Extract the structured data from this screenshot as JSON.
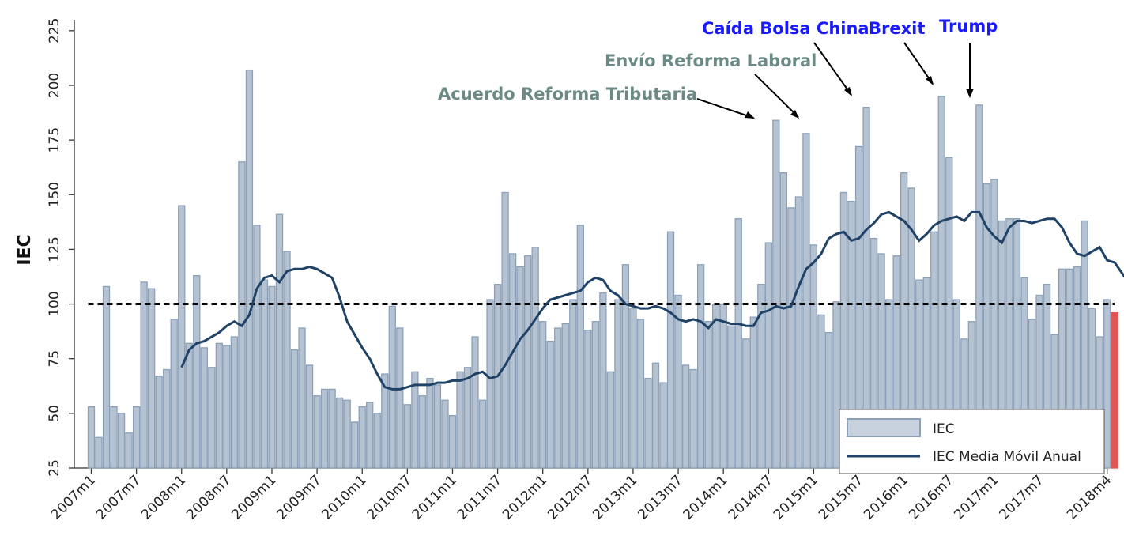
{
  "chart_data": {
    "type": "bar",
    "title": "",
    "xlabel": "",
    "ylabel": "IEC",
    "ylim": [
      25,
      230
    ],
    "yticks": [
      25,
      50,
      75,
      100,
      125,
      150,
      175,
      200,
      225
    ],
    "reference_line": 100,
    "start_month": "2007m1",
    "x_tick_labels": [
      "2007m1",
      "2007m7",
      "2008m1",
      "2008m7",
      "2009m1",
      "2009m7",
      "2010m1",
      "2010m7",
      "2011m1",
      "2011m7",
      "2012m1",
      "2012m7",
      "2013m1",
      "2013m7",
      "2014m1",
      "2014m7",
      "2015m1",
      "2015m7",
      "2016m1",
      "2016m7",
      "2017m1",
      "2017m7",
      "2018m4"
    ],
    "series": [
      {
        "name": "IEC",
        "values": [
          53,
          39,
          108,
          53,
          50,
          41,
          53,
          110,
          107,
          67,
          70,
          93,
          145,
          82,
          113,
          80,
          71,
          82,
          81,
          85,
          165,
          207,
          136,
          111,
          108,
          141,
          124,
          79,
          89,
          72,
          58,
          61,
          61,
          57,
          56,
          46,
          53,
          55,
          50,
          68,
          99,
          89,
          54,
          69,
          58,
          66,
          63,
          56,
          49,
          69,
          71,
          85,
          56,
          102,
          109,
          151,
          123,
          117,
          122,
          126,
          92,
          83,
          89,
          91,
          102,
          136,
          88,
          92,
          105,
          69,
          102,
          118,
          98,
          93,
          66,
          73,
          64,
          133,
          104,
          72,
          70,
          118,
          92,
          100,
          100,
          90,
          139,
          84,
          94,
          109,
          128,
          184,
          160,
          144,
          149,
          178,
          127,
          95,
          87,
          101,
          151,
          147,
          172,
          190,
          130,
          123,
          102,
          122,
          160,
          153,
          111,
          112,
          133,
          195,
          167,
          102,
          84,
          92,
          191,
          155,
          157,
          138,
          139,
          139,
          112,
          93,
          104,
          109,
          86,
          116,
          116,
          117,
          138,
          98,
          85,
          102,
          96
        ]
      },
      {
        "name": "IEC Media Móvil Anual",
        "start_index": 12,
        "values": [
          71,
          79,
          82,
          83,
          85,
          87,
          90,
          92,
          90,
          95,
          107,
          112,
          113,
          110,
          115,
          116,
          116,
          117,
          116,
          114,
          112,
          103,
          92,
          86,
          80,
          75,
          68,
          62,
          61,
          61,
          62,
          63,
          63,
          63,
          64,
          64,
          65,
          65,
          66,
          68,
          69,
          66,
          67,
          72,
          78,
          84,
          88,
          93,
          98,
          102,
          103,
          104,
          105,
          106,
          110,
          112,
          111,
          106,
          104,
          100,
          99,
          98,
          98,
          99,
          98,
          96,
          93,
          92,
          93,
          92,
          89,
          93,
          92,
          91,
          91,
          90,
          90,
          96,
          97,
          99,
          98,
          99,
          108,
          116,
          119,
          123,
          130,
          132,
          133,
          129,
          130,
          134,
          137,
          141,
          142,
          140,
          138,
          134,
          129,
          132,
          136,
          138,
          139,
          140,
          138,
          142,
          142,
          135,
          131,
          128,
          135,
          138,
          138,
          137,
          138,
          139,
          139,
          135,
          128,
          123,
          122,
          124,
          126,
          120,
          119,
          114,
          109,
          106,
          105
        ]
      }
    ],
    "highlighted_last_bar": true,
    "annotations": [
      {
        "text": "Acuerdo Reforma Tributaria",
        "color": "gray"
      },
      {
        "text": "Envío Reforma Laboral",
        "color": "gray"
      },
      {
        "text": "Caída Bolsa China",
        "color": "blue"
      },
      {
        "text": "Brexit",
        "color": "blue"
      },
      {
        "text": "Trump",
        "color": "blue"
      }
    ],
    "legend": {
      "position": "bottom-right",
      "entries": [
        {
          "label": "IEC"
        },
        {
          "label": "IEC Media Móvil Anual"
        }
      ]
    },
    "colors": {
      "bar_fill": "#b4c2d2",
      "bar_stroke": "#8ca0b8",
      "last_bar": "#e05555",
      "line": "#1f4266",
      "reference": "#000000"
    }
  }
}
